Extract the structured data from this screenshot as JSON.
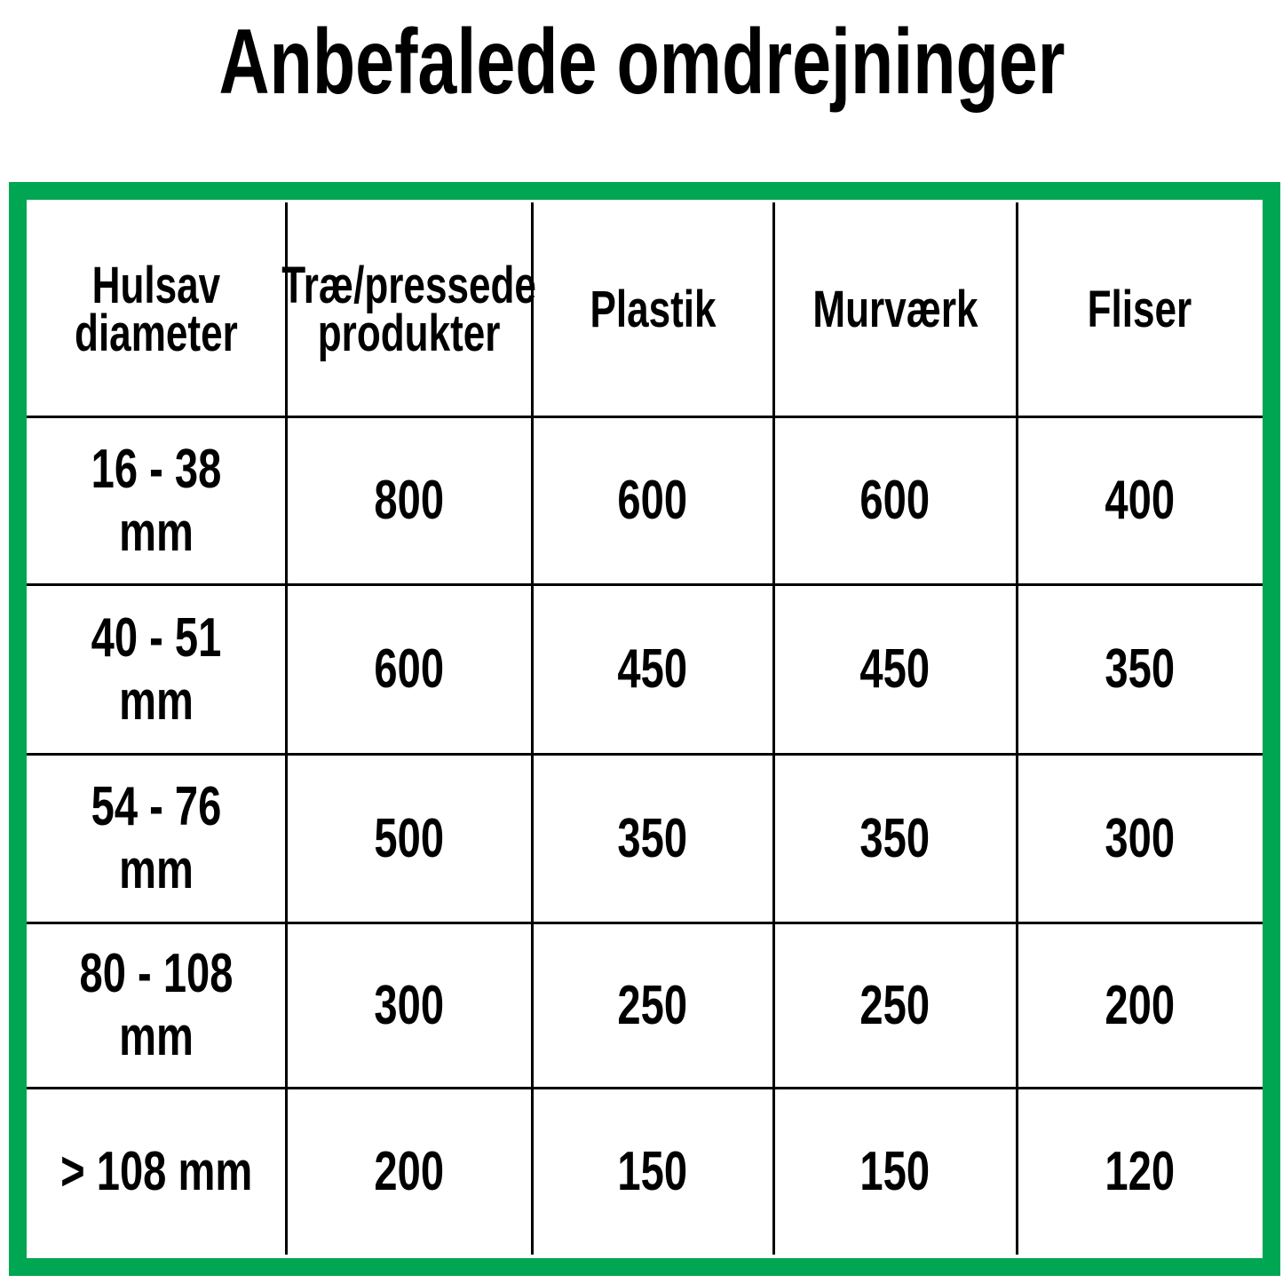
{
  "title": "Anbefalede omdrejninger",
  "table": {
    "header": [
      "Hulsav\ndiameter",
      "Træ/pressede\nprodukter",
      "Plastik",
      "Murværk",
      "Fliser"
    ],
    "rows": [
      [
        "16 - 38 mm",
        800,
        600,
        600,
        400
      ],
      [
        "40 - 51 mm",
        600,
        450,
        450,
        350
      ],
      [
        "54 - 76 mm",
        500,
        350,
        350,
        300
      ],
      [
        "80 - 108 mm",
        300,
        250,
        250,
        200
      ],
      [
        "> 108 mm",
        200,
        150,
        150,
        120
      ]
    ]
  }
}
